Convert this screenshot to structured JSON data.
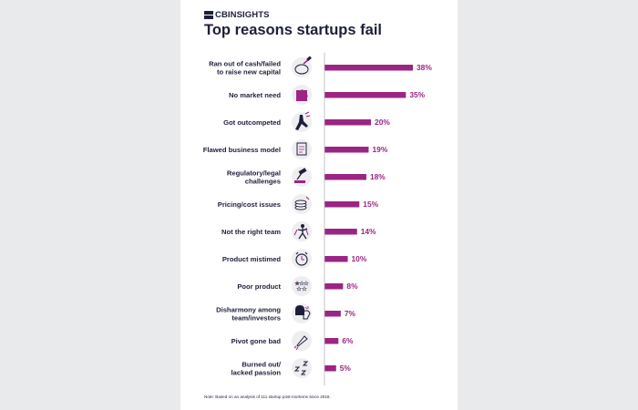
{
  "brand": {
    "name": "CBINSIGHTS"
  },
  "title": "Top reasons startups fail",
  "note": "Note: Based on an analysis of 111 startup post-mortems since 2018.",
  "colors": {
    "bar": "#9b2583",
    "text": "#1d1f3a",
    "axis": "#b3b5bb",
    "icon_bg": "#eeeef1"
  },
  "chart_data": {
    "type": "bar",
    "orientation": "horizontal",
    "title": "Top reasons startups fail",
    "categories": [
      [
        "Ran out of cash/failed",
        "to raise new capital"
      ],
      [
        "No market need"
      ],
      [
        "Got outcompeted"
      ],
      [
        "Flawed business model"
      ],
      [
        "Regulatory/legal",
        "challenges"
      ],
      [
        "Pricing/cost issues"
      ],
      [
        "Not the right team"
      ],
      [
        "Product mistimed"
      ],
      [
        "Poor product"
      ],
      [
        "Disharmony among",
        "team/investors"
      ],
      [
        "Pivot gone bad"
      ],
      [
        "Burned out/",
        "lacked passion"
      ]
    ],
    "values": [
      38,
      35,
      20,
      19,
      18,
      15,
      14,
      10,
      8,
      7,
      6,
      5
    ],
    "value_labels": [
      "38%",
      "35%",
      "20%",
      "19%",
      "18%",
      "15%",
      "14%",
      "10%",
      "8%",
      "7%",
      "6%",
      "5%"
    ],
    "icons": [
      "piggy-bank-hammer-icon",
      "puzzle-piece-icon",
      "running-legs-icon",
      "document-icon",
      "gavel-icon",
      "coins-icon",
      "team-people-icon",
      "alarm-clock-icon",
      "stars-rating-icon",
      "arguing-faces-icon",
      "rocket-crash-icon",
      "sleep-zzz-icon"
    ],
    "xlim": [
      0,
      38
    ],
    "grid": false,
    "legend": "none"
  }
}
